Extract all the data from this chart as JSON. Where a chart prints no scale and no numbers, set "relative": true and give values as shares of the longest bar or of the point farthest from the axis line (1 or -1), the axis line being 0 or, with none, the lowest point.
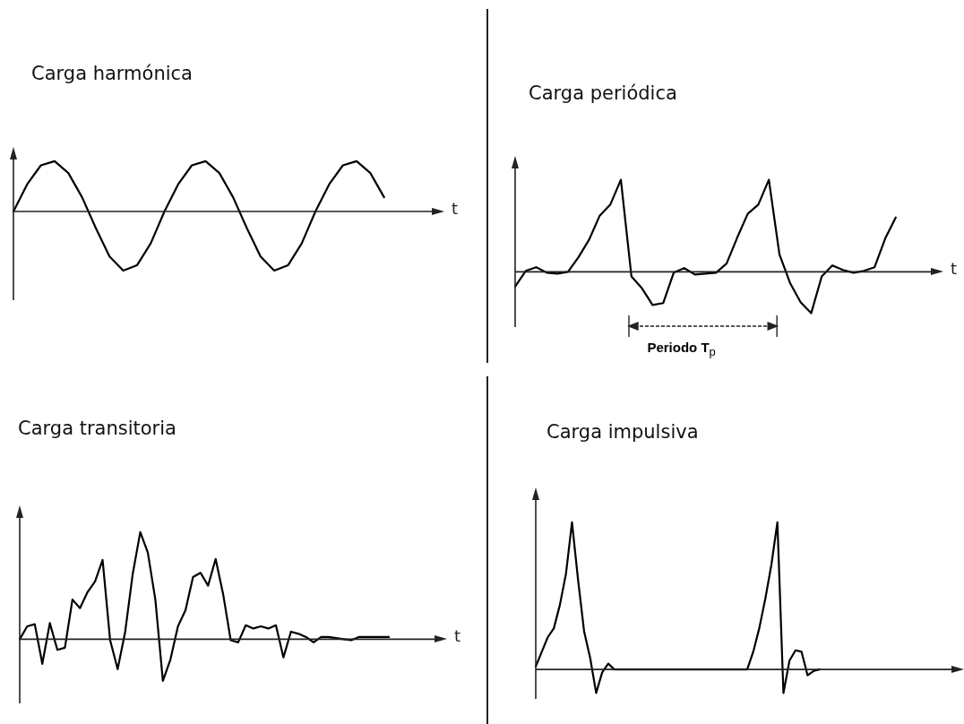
{
  "chart_data": [
    {
      "type": "line",
      "title": "Carga harmónica",
      "xlabel": "t",
      "relative": true,
      "grid": false,
      "tick_labels": false,
      "marker": "none",
      "color": "#000000",
      "categories": [
        null,
        null,
        null,
        null,
        null,
        null,
        null,
        null,
        null,
        null,
        null,
        null,
        null,
        null,
        null,
        null,
        null,
        null,
        null,
        null,
        null,
        null,
        null,
        null,
        null,
        null,
        null,
        null,
        null,
        null,
        null,
        null
      ],
      "values": [
        0,
        0.46,
        0.78,
        0.85,
        0.65,
        0.24,
        -0.28,
        -0.76,
        -1.0,
        -0.91,
        -0.54,
        0,
        0.46,
        0.78,
        0.85,
        0.65,
        0.24,
        -0.28,
        -0.76,
        -1.0,
        -0.91,
        -0.54,
        0,
        0.46,
        0.78,
        0.85,
        0.65,
        0.24,
        null,
        null,
        null,
        null
      ]
    },
    {
      "type": "line",
      "title": "Carga periódica",
      "xlabel": "t",
      "relative": true,
      "grid": false,
      "tick_labels": false,
      "marker": "none",
      "color": "#000000",
      "annotations": [
        "Periodo T$_{p}$"
      ],
      "categories": [
        null,
        null,
        null,
        null,
        null,
        null,
        null,
        null,
        null,
        null,
        null,
        null,
        null,
        null,
        null,
        null,
        null,
        null,
        null,
        null,
        null,
        null,
        null,
        null,
        null,
        null,
        null,
        null,
        null,
        null,
        null,
        null,
        null,
        null,
        null,
        null,
        null,
        null,
        null,
        null,
        null
      ],
      "values": [
        -0.16,
        0.01,
        0.05,
        -0.01,
        -0.02,
        0,
        0.16,
        0.35,
        0.61,
        0.73,
        1.0,
        -0.05,
        -0.18,
        -0.36,
        -0.34,
        -0.01,
        0.04,
        -0.03,
        -0.02,
        -0.01,
        0.09,
        0.37,
        0.63,
        0.73,
        1.0,
        0.19,
        -0.12,
        -0.33,
        -0.45,
        -0.05,
        0.07,
        0.02,
        -0.01,
        0.01,
        0.05,
        0.36,
        0.59,
        null,
        null,
        null,
        null
      ]
    },
    {
      "type": "line",
      "title": "Carga transitoria",
      "xlabel": "t",
      "relative": true,
      "grid": false,
      "tick_labels": false,
      "marker": "none",
      "color": "#000000",
      "categories": [
        null,
        null,
        null,
        null,
        null,
        null,
        null,
        null,
        null,
        null,
        null,
        null,
        null,
        null,
        null,
        null,
        null,
        null,
        null,
        null,
        null,
        null,
        null,
        null,
        null,
        null,
        null,
        null,
        null,
        null,
        null,
        null,
        null,
        null,
        null,
        null,
        null,
        null,
        null,
        null,
        null,
        null,
        null,
        null,
        null,
        null,
        null,
        null,
        null,
        null,
        null,
        null,
        null,
        null,
        null,
        null,
        null
      ],
      "values": [
        0,
        0.12,
        0.14,
        -0.23,
        0.15,
        -0.1,
        -0.08,
        0.37,
        0.29,
        0.44,
        0.54,
        0.74,
        -0.01,
        -0.28,
        0.07,
        0.61,
        1.0,
        0.81,
        0.37,
        -0.39,
        -0.19,
        0.12,
        0.27,
        0.58,
        0.62,
        0.5,
        0.75,
        0.42,
        -0.01,
        -0.03,
        0.13,
        0.1,
        0.12,
        0.1,
        0.13,
        -0.17,
        0.07,
        0.05,
        0.02,
        -0.03,
        0.02,
        0.02,
        0.01,
        0,
        -0.01,
        0.02,
        0.02,
        0.02,
        0.02,
        0.02,
        null,
        null,
        null,
        null,
        null,
        null,
        null
      ]
    },
    {
      "type": "line",
      "title": "Carga impulsiva",
      "relative": true,
      "grid": false,
      "tick_labels": false,
      "marker": "none",
      "color": "#000000",
      "categories": [
        null,
        null,
        null,
        null,
        null,
        null,
        null,
        null,
        null,
        null,
        null,
        null,
        null,
        null,
        null,
        null,
        null,
        null,
        null,
        null,
        null,
        null,
        null,
        null,
        null,
        null,
        null,
        null,
        null,
        null,
        null,
        null,
        null,
        null,
        null,
        null,
        null,
        null,
        null,
        null,
        null,
        null,
        null,
        null,
        null,
        null,
        null,
        null,
        null,
        null,
        null,
        null,
        null,
        null,
        null,
        null,
        null,
        null,
        null,
        null,
        null,
        null,
        null,
        null,
        null,
        null,
        null,
        null,
        null,
        null,
        null
      ],
      "values": [
        0.02,
        0.12,
        0.22,
        0.28,
        0.44,
        0.65,
        1.0,
        0.61,
        0.26,
        0.08,
        -0.16,
        -0.02,
        0.04,
        0,
        0,
        0,
        0,
        0,
        0,
        0,
        0,
        0,
        0,
        0,
        0,
        0,
        0,
        0,
        0,
        0,
        0,
        0,
        0,
        0,
        0,
        0,
        0.12,
        0.28,
        0.48,
        0.71,
        1.0,
        -0.16,
        0.06,
        0.13,
        0.12,
        -0.04,
        -0.01,
        0,
        null,
        null,
        null,
        null,
        null,
        null,
        null,
        null,
        null,
        null,
        null,
        null,
        null,
        null,
        null,
        null,
        null,
        null,
        null,
        null,
        null,
        null,
        null
      ]
    }
  ]
}
